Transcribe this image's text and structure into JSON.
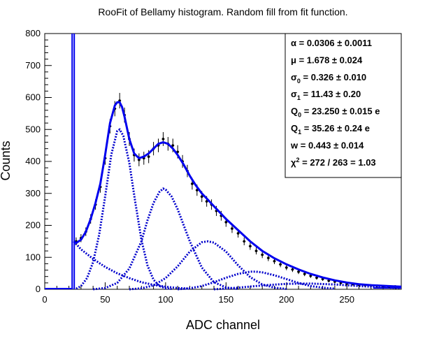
{
  "chart_data": {
    "type": "scatter",
    "title": "RooFit of Bellamy histogram. Random fill from fit function.",
    "xlabel": "ADC channel",
    "ylabel": "Counts",
    "xlim": [
      0,
      295
    ],
    "ylim": [
      0,
      800
    ],
    "x_ticks": [
      0,
      50,
      100,
      150,
      200,
      250
    ],
    "y_ticks": [
      0,
      100,
      200,
      300,
      400,
      500,
      600,
      700,
      800
    ],
    "grid": false,
    "legend": "top-right",
    "colors": {
      "fit": "#0000ee",
      "components": "#0000cc",
      "data": "#000000"
    },
    "stats_box": [
      {
        "sym": "α",
        "sub": "",
        "sup": "",
        "value": "= 0.0306 ± 0.0011"
      },
      {
        "sym": "μ",
        "sub": "",
        "sup": "",
        "value": "= 1.678 ± 0.024"
      },
      {
        "sym": "σ",
        "sub": "0",
        "sup": "",
        "value": "= 0.326 ± 0.010"
      },
      {
        "sym": "σ",
        "sub": "1",
        "sup": "",
        "value": "= 11.43 ± 0.20"
      },
      {
        "sym": "Q",
        "sub": "0",
        "sup": "",
        "value": "= 23.250 ± 0.015 e"
      },
      {
        "sym": "Q",
        "sub": "1",
        "sup": "",
        "value": "= 35.26 ± 0.24 e"
      },
      {
        "sym": "w",
        "sub": "",
        "sup": "",
        "value": "= 0.443 ± 0.014"
      },
      {
        "sym": "χ",
        "sub": "",
        "sup": "2",
        "value": "= 272 / 263 = 1.03"
      }
    ],
    "pedestal": {
      "x": 23.25,
      "peak_exceeds_axis": true
    },
    "data_points": {
      "x": [
        26,
        30,
        34,
        38,
        42,
        46,
        50,
        54,
        58,
        62,
        66,
        70,
        74,
        78,
        82,
        86,
        90,
        94,
        98,
        102,
        106,
        110,
        114,
        118,
        122,
        126,
        130,
        134,
        138,
        142,
        146,
        150,
        155,
        160,
        165,
        170,
        175,
        180,
        185,
        190,
        195,
        200,
        205,
        210,
        215,
        220,
        225,
        230,
        235,
        240,
        245,
        250,
        255,
        260,
        265,
        270,
        275,
        280,
        285,
        290
      ],
      "y": [
        150,
        160,
        180,
        220,
        265,
        320,
        410,
        510,
        565,
        590,
        545,
        470,
        420,
        405,
        410,
        415,
        440,
        450,
        470,
        455,
        450,
        430,
        400,
        370,
        330,
        310,
        290,
        275,
        265,
        245,
        230,
        210,
        190,
        175,
        150,
        135,
        120,
        108,
        98,
        88,
        78,
        68,
        62,
        55,
        48,
        42,
        36,
        32,
        27,
        24,
        20,
        18,
        16,
        14,
        13,
        12,
        11,
        10,
        9,
        9
      ]
    },
    "total_fit": {
      "x": [
        24,
        26,
        30,
        34,
        38,
        42,
        46,
        50,
        54,
        58,
        60,
        62,
        64,
        66,
        70,
        74,
        78,
        82,
        86,
        90,
        94,
        98,
        102,
        106,
        110,
        115,
        120,
        125,
        130,
        135,
        140,
        145,
        150,
        160,
        170,
        180,
        190,
        200,
        210,
        220,
        230,
        240,
        250,
        260,
        270,
        280,
        290,
        295
      ],
      "y": [
        150,
        145,
        155,
        180,
        220,
        270,
        330,
        420,
        520,
        575,
        585,
        585,
        570,
        540,
        470,
        425,
        410,
        415,
        425,
        440,
        455,
        460,
        455,
        440,
        420,
        390,
        355,
        325,
        300,
        280,
        260,
        240,
        220,
        185,
        150,
        120,
        97,
        78,
        62,
        48,
        37,
        28,
        21,
        16,
        13,
        11,
        9,
        8
      ]
    },
    "components": [
      {
        "x": [
          24,
          30,
          40,
          50,
          60,
          70,
          80,
          90,
          100,
          110,
          120
        ],
        "y": [
          150,
          125,
          95,
          70,
          50,
          35,
          22,
          14,
          8,
          4,
          2
        ]
      },
      {
        "x": [
          26,
          30,
          35,
          40,
          45,
          50,
          55,
          60,
          62,
          65,
          70,
          75,
          80,
          85,
          90,
          95,
          100,
          105
        ],
        "y": [
          2,
          10,
          35,
          85,
          170,
          290,
          420,
          495,
          500,
          480,
          395,
          270,
          155,
          75,
          30,
          10,
          3,
          1
        ]
      },
      {
        "x": [
          40,
          50,
          60,
          70,
          80,
          85,
          90,
          95,
          98,
          100,
          105,
          110,
          120,
          130,
          140,
          150,
          160
        ],
        "y": [
          0,
          4,
          20,
          65,
          150,
          215,
          270,
          305,
          315,
          312,
          290,
          250,
          150,
          68,
          22,
          6,
          1
        ]
      },
      {
        "x": [
          70,
          80,
          90,
          100,
          110,
          120,
          130,
          135,
          140,
          150,
          160,
          170,
          180,
          190,
          200
        ],
        "y": [
          0,
          3,
          12,
          35,
          72,
          118,
          147,
          150,
          146,
          118,
          75,
          38,
          15,
          5,
          1
        ]
      },
      {
        "x": [
          110,
          120,
          130,
          140,
          150,
          160,
          170,
          175,
          180,
          190,
          200,
          210,
          220,
          230,
          240
        ],
        "y": [
          0,
          3,
          10,
          22,
          36,
          48,
          55,
          55,
          53,
          44,
          32,
          20,
          10,
          5,
          2
        ]
      },
      {
        "x": [
          140,
          160,
          180,
          200,
          220,
          240,
          260,
          280,
          295
        ],
        "y": [
          0,
          5,
          12,
          17,
          18,
          15,
          10,
          6,
          4
        ]
      }
    ]
  }
}
